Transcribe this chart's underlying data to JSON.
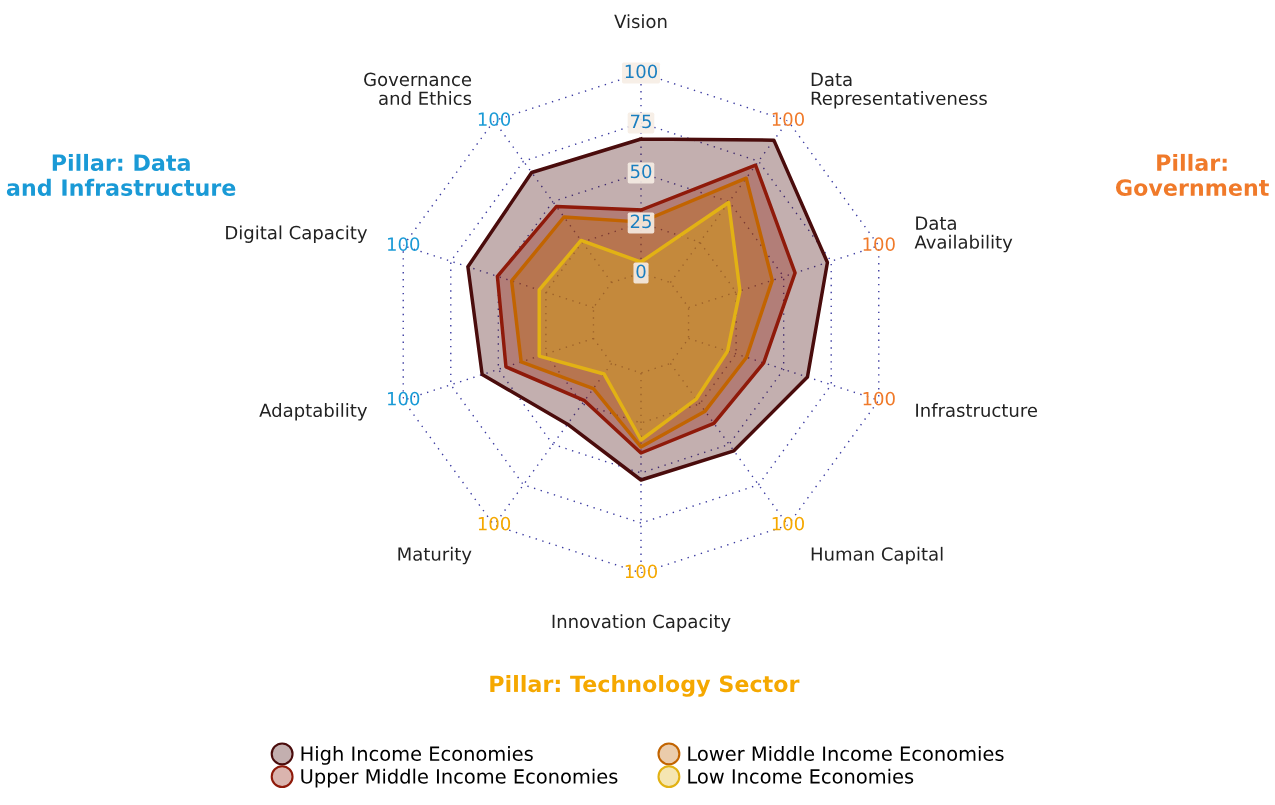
{
  "chart_data": {
    "type": "radar",
    "categories": [
      "Vision",
      "Data\nRepresentativeness",
      "Data\nAvailability",
      "Infrastructure",
      "Human Capital",
      "Innovation Capacity",
      "Maturity",
      "Adaptability",
      "Digital Capacity",
      "Governance\nand Ethics"
    ],
    "series": [
      {
        "name": "High Income Economies",
        "color": "#4a0c0c",
        "values": [
          67,
          88,
          73,
          62.5,
          54,
          53.5,
          37.5,
          58.5,
          66,
          68
        ]
      },
      {
        "name": "Upper Middle Income Economies",
        "color": "#8f1a0a",
        "values": [
          31.5,
          72.5,
          56,
          39.5,
          37,
          40,
          23,
          46,
          50.5,
          47
        ]
      },
      {
        "name": "Lower Middle Income Economies",
        "color": "#c26400",
        "values": [
          25.5,
          64.5,
          44,
          30.5,
          29.5,
          37,
          15.5,
          38,
          43,
          40.5
        ]
      },
      {
        "name": "Low Income Economies",
        "color": "#e2b214",
        "values": [
          5.5,
          49.5,
          27,
          20.5,
          22,
          33.5,
          6.5,
          28.5,
          28.5,
          26
        ]
      }
    ],
    "ylim": [
      -25,
      100
    ],
    "yticks": [
      0,
      25,
      50,
      75,
      100
    ],
    "annotations": [
      "Pillar: Data\nand Infrastructure",
      "Pillar:\nGovernment",
      "Pillar: Technology Sector",
      "100",
      "100",
      "100",
      "100",
      "100",
      "100",
      "100",
      "100",
      "100"
    ],
    "grid": true,
    "legend": "bottom",
    "marker": "none",
    "line_style": "solid"
  }
}
